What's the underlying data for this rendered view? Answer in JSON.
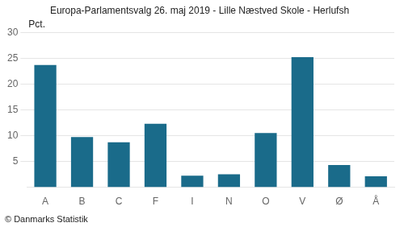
{
  "chart_data": {
    "type": "bar",
    "title": "Europa-Parlamentsvalg 26. maj 2019 - Lille Næstved Skole - Herlufsh",
    "ylabel": "Pct.",
    "annotations": [
      "© Danmarks Statistik"
    ],
    "categories": [
      "A",
      "B",
      "C",
      "F",
      "I",
      "N",
      "O",
      "V",
      "Ø",
      "Å"
    ],
    "values": [
      23.7,
      9.7,
      8.7,
      12.3,
      2.2,
      2.5,
      10.5,
      25.2,
      4.3,
      2.1
    ],
    "color": "#1a6b8a",
    "ylim": [
      0,
      30
    ],
    "yticks": [
      5,
      10,
      15,
      20,
      25,
      30
    ],
    "grid": true
  }
}
